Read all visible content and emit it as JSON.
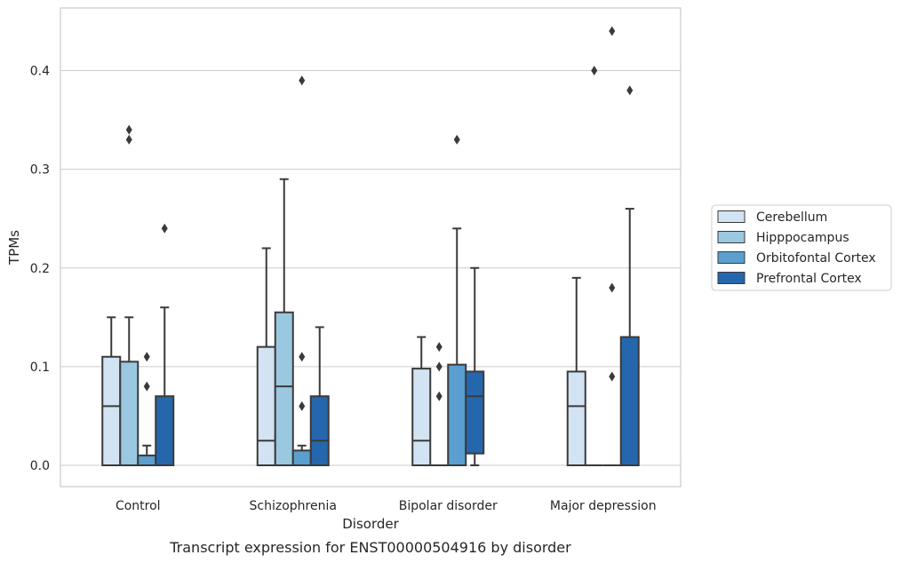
{
  "chart_data": {
    "type": "box",
    "title": "",
    "caption": "Transcript expression for ENST00000504916 by disorder",
    "xlabel": "Disorder",
    "ylabel": "TPMs",
    "ylim": [
      -0.021,
      0.464
    ],
    "yticks": [
      0.0,
      0.1,
      0.2,
      0.3,
      0.4
    ],
    "ytick_labels": [
      "0.0",
      "0.1",
      "0.2",
      "0.3",
      "0.4"
    ],
    "grid": "horizontal",
    "legend_position": "right",
    "categories": [
      "Control",
      "Schizophrenia",
      "Bipolar disorder",
      "Major depression"
    ],
    "series": [
      {
        "name": "Cerebellum",
        "color": "#d2e3f3",
        "boxes": [
          {
            "whislo": 0.0,
            "q1": 0.0,
            "med": 0.06,
            "q3": 0.11,
            "whishi": 0.15,
            "fliers": []
          },
          {
            "whislo": 0.0,
            "q1": 0.0,
            "med": 0.025,
            "q3": 0.12,
            "whishi": 0.22,
            "fliers": []
          },
          {
            "whislo": 0.0,
            "q1": 0.0,
            "med": 0.025,
            "q3": 0.098,
            "whishi": 0.13,
            "fliers": []
          },
          {
            "whislo": 0.0,
            "q1": 0.0,
            "med": 0.06,
            "q3": 0.095,
            "whishi": 0.19,
            "fliers": []
          }
        ]
      },
      {
        "name": "Hipppocampus",
        "color": "#9ac8e0",
        "boxes": [
          {
            "whislo": 0.0,
            "q1": 0.0,
            "med": 0.0,
            "q3": 0.105,
            "whishi": 0.15,
            "fliers": [
              0.33,
              0.34
            ]
          },
          {
            "whislo": 0.0,
            "q1": 0.0,
            "med": 0.08,
            "q3": 0.155,
            "whishi": 0.29,
            "fliers": []
          },
          {
            "whislo": 0.0,
            "q1": 0.0,
            "med": 0.0,
            "q3": 0.0,
            "whishi": 0.0,
            "fliers": [
              0.07,
              0.1,
              0.12
            ]
          },
          {
            "whislo": 0.0,
            "q1": 0.0,
            "med": 0.0,
            "q3": 0.0,
            "whishi": 0.0,
            "fliers": [
              0.4
            ]
          }
        ]
      },
      {
        "name": "Orbitofontal Cortex",
        "color": "#5a9fcf",
        "boxes": [
          {
            "whislo": 0.0,
            "q1": 0.0,
            "med": 0.0,
            "q3": 0.01,
            "whishi": 0.02,
            "fliers": [
              0.08,
              0.11
            ]
          },
          {
            "whislo": 0.0,
            "q1": 0.0,
            "med": 0.0,
            "q3": 0.015,
            "whishi": 0.02,
            "fliers": [
              0.06,
              0.11,
              0.39
            ]
          },
          {
            "whislo": 0.0,
            "q1": 0.0,
            "med": 0.0,
            "q3": 0.102,
            "whishi": 0.24,
            "fliers": [
              0.33
            ]
          },
          {
            "whislo": 0.0,
            "q1": 0.0,
            "med": 0.0,
            "q3": 0.0,
            "whishi": 0.0,
            "fliers": [
              0.09,
              0.18,
              0.44
            ]
          }
        ]
      },
      {
        "name": "Prefrontal Cortex",
        "color": "#2567ad",
        "boxes": [
          {
            "whislo": 0.0,
            "q1": 0.0,
            "med": 0.0,
            "q3": 0.07,
            "whishi": 0.16,
            "fliers": [
              0.24
            ]
          },
          {
            "whislo": 0.0,
            "q1": 0.0,
            "med": 0.025,
            "q3": 0.07,
            "whishi": 0.14,
            "fliers": []
          },
          {
            "whislo": 0.0,
            "q1": 0.012,
            "med": 0.07,
            "q3": 0.095,
            "whishi": 0.2,
            "fliers": []
          },
          {
            "whislo": 0.0,
            "q1": 0.0,
            "med": 0.0,
            "q3": 0.13,
            "whishi": 0.26,
            "fliers": [
              0.38
            ]
          }
        ]
      }
    ]
  }
}
